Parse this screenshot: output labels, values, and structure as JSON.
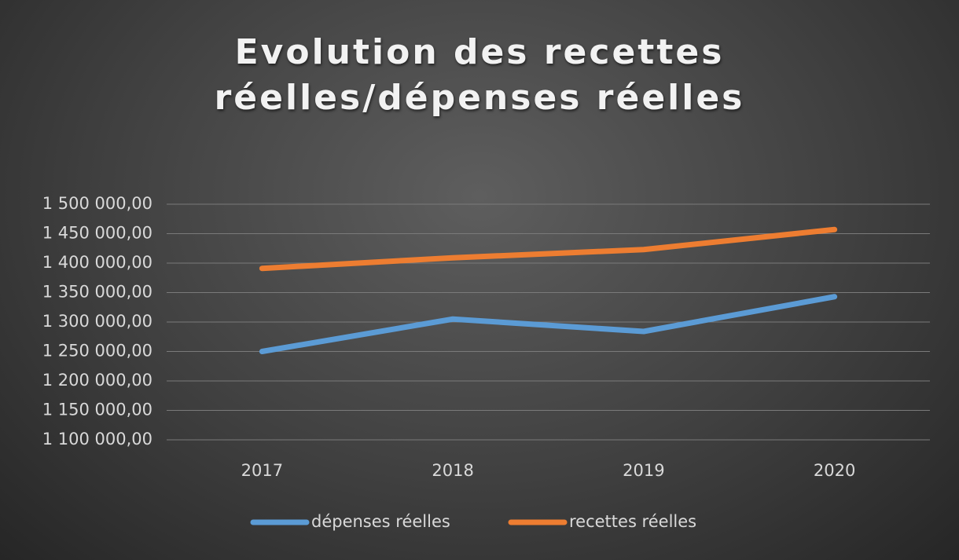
{
  "chart_data": {
    "type": "line",
    "title": "Evolution des recettes réelles/dépenses réelles",
    "categories": [
      "2017",
      "2018",
      "2019",
      "2020"
    ],
    "series": [
      {
        "name": "dépenses réelles",
        "color": "#5b9bd5",
        "values": [
          1250000,
          1305000,
          1284000,
          1343000
        ]
      },
      {
        "name": "recettes réelles",
        "color": "#ed7d31",
        "values": [
          1391000,
          1409000,
          1423000,
          1457000
        ]
      }
    ],
    "ylim": [
      1100000,
      1500000
    ],
    "yticks": [
      {
        "value": 1100000,
        "label": "1 100 000,00"
      },
      {
        "value": 1150000,
        "label": "1 150 000,00"
      },
      {
        "value": 1200000,
        "label": "1 200 000,00"
      },
      {
        "value": 1250000,
        "label": "1 250 000,00"
      },
      {
        "value": 1300000,
        "label": "1 300 000,00"
      },
      {
        "value": 1350000,
        "label": "1 350 000,00"
      },
      {
        "value": 1400000,
        "label": "1 400 000,00"
      },
      {
        "value": 1450000,
        "label": "1 450 000,00"
      },
      {
        "value": 1500000,
        "label": "1 500 000,00"
      }
    ],
    "grid": true,
    "legend": "bottom"
  }
}
